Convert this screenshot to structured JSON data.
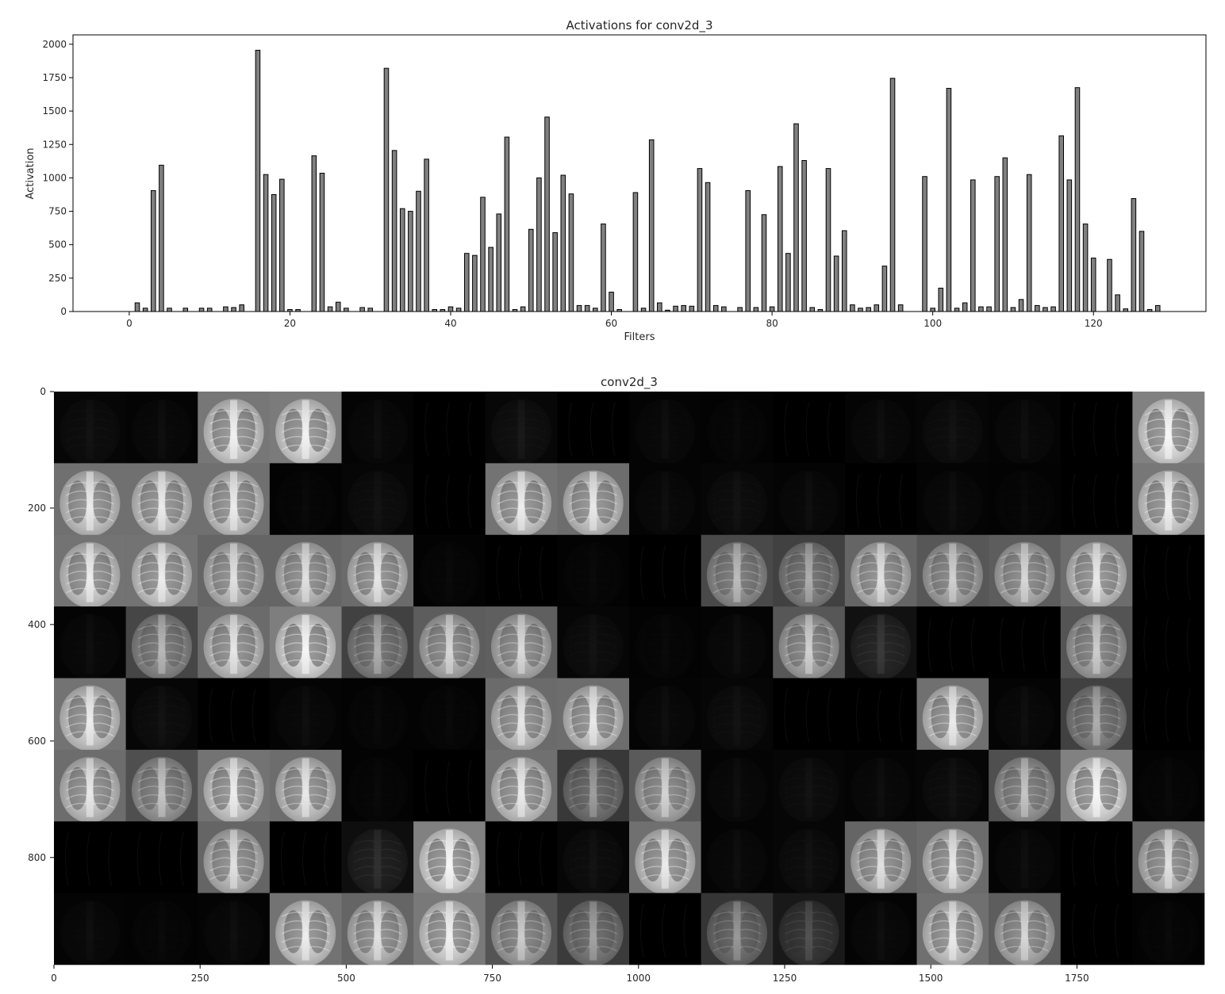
{
  "chart_data": [
    {
      "type": "bar",
      "title": "Activations for conv2d_3",
      "xlabel": "Filters",
      "ylabel": "Activation",
      "xlim": [
        -7,
        134
      ],
      "ylim": [
        0,
        2070
      ],
      "xticks": [
        0,
        20,
        40,
        60,
        80,
        100,
        120
      ],
      "yticks": [
        0,
        250,
        500,
        750,
        1000,
        1250,
        1500,
        1750,
        2000
      ],
      "bar_color": "#808080",
      "edge_color": "#000000",
      "grid": false,
      "values": [
        0,
        65,
        25,
        905,
        1095,
        25,
        0,
        25,
        0,
        25,
        25,
        0,
        35,
        30,
        50,
        0,
        1955,
        1025,
        875,
        990,
        15,
        15,
        0,
        1165,
        1035,
        35,
        70,
        25,
        0,
        30,
        25,
        0,
        1820,
        1205,
        770,
        750,
        900,
        1140,
        15,
        15,
        35,
        25,
        435,
        420,
        855,
        480,
        730,
        1305,
        15,
        35,
        615,
        1000,
        1455,
        590,
        1020,
        880,
        45,
        45,
        25,
        655,
        145,
        15,
        0,
        890,
        25,
        1285,
        65,
        10,
        40,
        45,
        40,
        1070,
        965,
        45,
        35,
        0,
        30,
        905,
        30,
        725,
        35,
        1085,
        435,
        1405,
        1130,
        30,
        15,
        1070,
        415,
        605,
        50,
        25,
        30,
        50,
        340,
        1745,
        50,
        0,
        0,
        1010,
        25,
        175,
        1670,
        25,
        65,
        985,
        35,
        35,
        1010,
        1150,
        30,
        90,
        1025,
        45,
        30,
        35,
        1315,
        985,
        1675,
        655,
        400,
        0,
        390,
        125,
        20,
        845,
        600,
        15,
        45
      ]
    },
    {
      "type": "heatmap",
      "title": "conv2d_3",
      "colormap": "gray",
      "xticks": [
        0,
        250,
        500,
        750,
        1000,
        1250,
        1500,
        1750
      ],
      "yticks": [
        0,
        200,
        400,
        600,
        800
      ],
      "grid_rows": 8,
      "grid_cols": 16,
      "cell_brightness": [
        [
          0.04,
          0.03,
          0.85,
          0.88,
          0.03,
          0.0,
          0.05,
          0.0,
          0.03,
          0.02,
          0.0,
          0.03,
          0.04,
          0.03,
          0.0,
          0.92
        ],
        [
          0.8,
          0.8,
          0.8,
          0.02,
          0.04,
          0.0,
          0.82,
          0.78,
          0.03,
          0.04,
          0.03,
          0.0,
          0.03,
          0.02,
          0.0,
          0.85
        ],
        [
          0.82,
          0.82,
          0.72,
          0.72,
          0.76,
          0.02,
          0.0,
          0.02,
          0.0,
          0.52,
          0.46,
          0.72,
          0.62,
          0.66,
          0.78,
          0.0
        ],
        [
          0.03,
          0.5,
          0.76,
          0.9,
          0.46,
          0.66,
          0.68,
          0.04,
          0.02,
          0.03,
          0.62,
          0.12,
          0.0,
          0.0,
          0.6,
          0.0
        ],
        [
          0.82,
          0.04,
          0.0,
          0.03,
          0.02,
          0.02,
          0.76,
          0.78,
          0.03,
          0.04,
          0.0,
          0.0,
          0.8,
          0.03,
          0.46,
          0.0
        ],
        [
          0.78,
          0.56,
          0.82,
          0.78,
          0.02,
          0.0,
          0.8,
          0.4,
          0.64,
          0.03,
          0.04,
          0.03,
          0.04,
          0.56,
          0.92,
          0.02
        ],
        [
          0.0,
          0.0,
          0.72,
          0.0,
          0.1,
          0.92,
          0.0,
          0.04,
          0.8,
          0.03,
          0.04,
          0.72,
          0.76,
          0.03,
          0.0,
          0.72
        ],
        [
          0.03,
          0.02,
          0.03,
          0.82,
          0.72,
          0.86,
          0.6,
          0.42,
          0.0,
          0.38,
          0.18,
          0.03,
          0.8,
          0.66,
          0.0,
          0.02
        ]
      ]
    }
  ]
}
